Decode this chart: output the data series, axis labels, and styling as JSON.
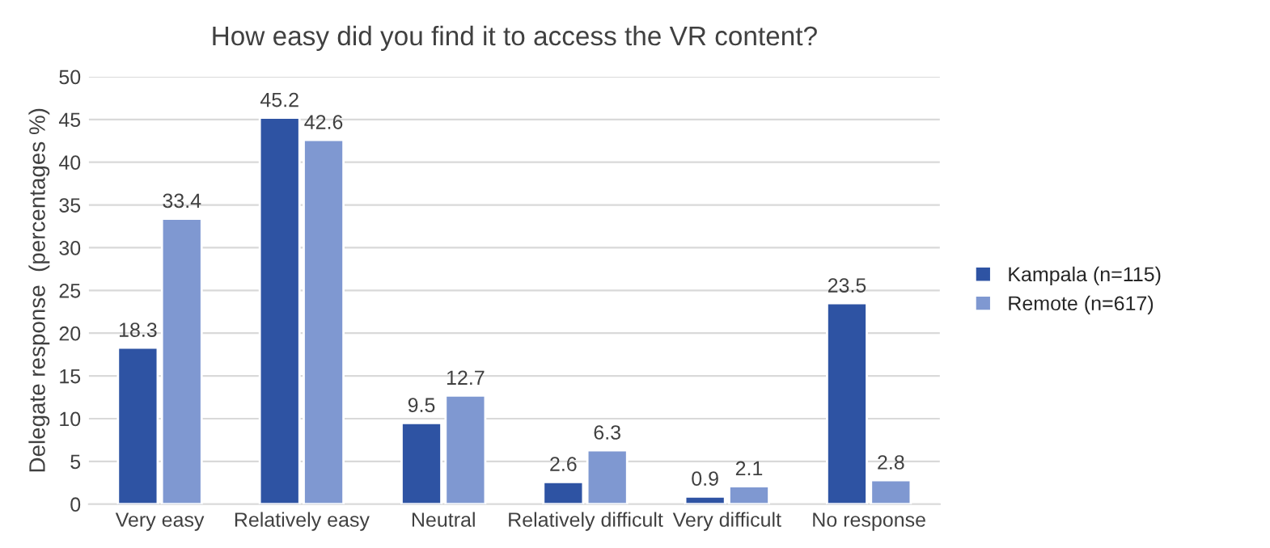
{
  "chart_data": {
    "type": "bar",
    "title": "How easy did you find it to access the VR content?",
    "ylabel": "Delegate response  (percentages %)",
    "categories": [
      "Very easy",
      "Relatively easy",
      "Neutral",
      "Relatively difficult",
      "Very difficult",
      "No response"
    ],
    "series": [
      {
        "name": "Kampala (n=115)",
        "color": "#2e53a3",
        "values": [
          18.3,
          45.2,
          9.5,
          2.6,
          0.9,
          23.5
        ]
      },
      {
        "name": "Remote (n=617)",
        "color": "#7f98d1",
        "values": [
          33.4,
          42.6,
          12.7,
          6.3,
          2.1,
          2.8
        ]
      }
    ],
    "ylim": [
      0,
      50
    ],
    "yticks": [
      0,
      5,
      10,
      15,
      20,
      25,
      30,
      35,
      40,
      45,
      50
    ],
    "grid": "y",
    "legend": "right",
    "data_labels": true
  }
}
